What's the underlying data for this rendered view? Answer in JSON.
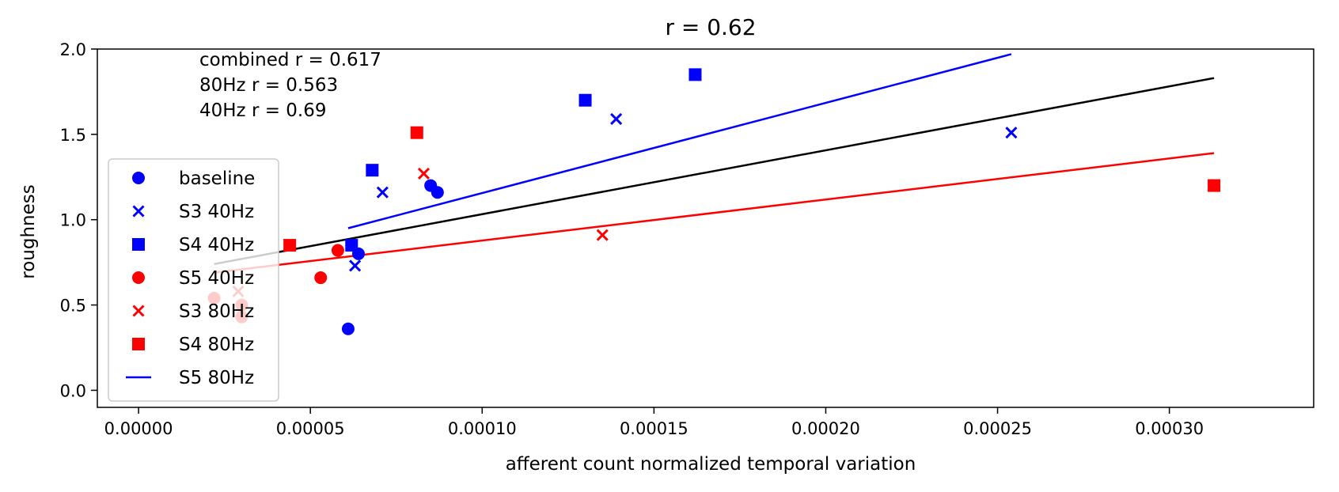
{
  "chart_data": {
    "type": "scatter",
    "title": "r = 0.62",
    "xlabel": "afferent count normalized temporal variation",
    "ylabel": "roughness",
    "xlim": [
      -1.2e-05,
      0.000342
    ],
    "ylim": [
      -0.1,
      2.0
    ],
    "x_ticks": [
      0.0,
      5e-05,
      0.0001,
      0.00015,
      0.0002,
      0.00025,
      0.0003
    ],
    "x_tick_labels": [
      "0.00000",
      "0.00005",
      "0.00010",
      "0.00015",
      "0.00020",
      "0.00025",
      "0.00030"
    ],
    "y_ticks": [
      0.0,
      0.5,
      1.0,
      1.5,
      2.0
    ],
    "y_tick_labels": [
      "0.0",
      "0.5",
      "1.0",
      "1.5",
      "2.0"
    ],
    "annotations": [
      "combined r = 0.617",
      "80Hz r = 0.563",
      "40Hz r = 0.69"
    ],
    "legend_position": "center-left",
    "grid": false,
    "series": [
      {
        "name": "baseline",
        "marker": "circle",
        "color": "#0000ff",
        "points": [
          [
            6.1e-05,
            0.36
          ],
          [
            6.4e-05,
            0.8
          ],
          [
            8.5e-05,
            1.2
          ],
          [
            8.7e-05,
            1.16
          ]
        ]
      },
      {
        "name": "S3 40Hz",
        "marker": "x",
        "color": "#0000ff",
        "points": [
          [
            6.3e-05,
            0.73
          ],
          [
            7.1e-05,
            1.16
          ],
          [
            0.000139,
            1.59
          ],
          [
            0.000254,
            1.51
          ]
        ]
      },
      {
        "name": "S4 40Hz",
        "marker": "square",
        "color": "#0000ff",
        "points": [
          [
            6.2e-05,
            0.85
          ],
          [
            6.8e-05,
            1.29
          ],
          [
            0.00013,
            1.7
          ],
          [
            0.000162,
            1.85
          ]
        ]
      },
      {
        "name": "S5 40Hz",
        "marker": "circle",
        "color": "#ff0000",
        "points": [
          [
            2.2e-05,
            0.54
          ],
          [
            3e-05,
            0.43
          ],
          [
            3e-05,
            0.5
          ],
          [
            5.3e-05,
            0.66
          ],
          [
            5.8e-05,
            0.82
          ]
        ]
      },
      {
        "name": "S3 80Hz",
        "marker": "x",
        "color": "#ff0000",
        "points": [
          [
            2.9e-05,
            0.58
          ],
          [
            8.3e-05,
            1.27
          ],
          [
            0.000135,
            0.91
          ]
        ]
      },
      {
        "name": "S4 80Hz",
        "marker": "square",
        "color": "#ff0000",
        "points": [
          [
            4.4e-05,
            0.85
          ],
          [
            8.1e-05,
            1.51
          ],
          [
            0.000313,
            1.2
          ]
        ]
      },
      {
        "name": "S5 80Hz",
        "marker": "line",
        "color": "#0000ff",
        "points": []
      }
    ],
    "fit_lines": [
      {
        "color": "#0000ff",
        "x": [
          6.1e-05,
          0.000254
        ],
        "y": [
          0.95,
          1.97
        ]
      },
      {
        "color": "#000000",
        "x": [
          2.2e-05,
          0.000313
        ],
        "y": [
          0.74,
          1.83
        ]
      },
      {
        "color": "#ff0000",
        "x": [
          2.2e-05,
          0.000313
        ],
        "y": [
          0.69,
          1.39
        ]
      }
    ]
  }
}
